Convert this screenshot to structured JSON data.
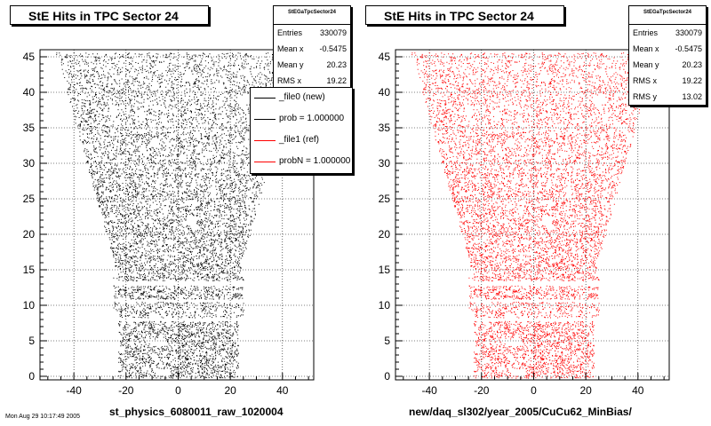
{
  "footer_text": "Mon Aug 29 10:17:49 2005",
  "chart_data": [
    {
      "type": "scatter",
      "title": "StE Hits in TPC Sector 24",
      "xlabel": "st_physics_6080011_raw_1020004",
      "ylabel": "",
      "xlim": [
        -53,
        52
      ],
      "ylim": [
        -0.5,
        46
      ],
      "xticks": [
        "-40",
        "-20",
        "0",
        "20",
        "40"
      ],
      "yticks": [
        "0",
        "5",
        "10",
        "15",
        "20",
        "25",
        "30",
        "35",
        "40",
        "45"
      ],
      "color": "#000000",
      "grid": true,
      "stats": {
        "name": "StEGaTpcSector24",
        "rows": [
          {
            "label": "Entries",
            "value": "330079"
          },
          {
            "label": "Mean x",
            "value": "-0.5475"
          },
          {
            "label": "Mean y",
            "value": "20.23"
          },
          {
            "label": "RMS x",
            "value": "19.22"
          }
        ]
      },
      "legend": [
        {
          "label": "_file0 (new)",
          "color": "#000000"
        },
        {
          "label": "prob = 1.000000",
          "color": "#000000"
        },
        {
          "label": "_file1 (ref)",
          "color": "#ff0000"
        },
        {
          "label": "probN = 1.000000",
          "color": "#ff0000"
        }
      ]
    },
    {
      "type": "scatter",
      "title": "StE Hits in TPC Sector 24",
      "xlabel": "new/daq_sl302/year_2005/CuCu62_MinBias/",
      "ylabel": "",
      "xlim": [
        -53,
        52
      ],
      "ylim": [
        -0.5,
        46
      ],
      "xticks": [
        "-40",
        "-20",
        "0",
        "20",
        "40"
      ],
      "yticks": [
        "0",
        "5",
        "10",
        "15",
        "20",
        "25",
        "30",
        "35",
        "40",
        "45"
      ],
      "color": "#ff0000",
      "grid": true,
      "stats": {
        "name": "StEGaTpcSector24",
        "rows": [
          {
            "label": "Entries",
            "value": "330079"
          },
          {
            "label": "Mean x",
            "value": "-0.5475"
          },
          {
            "label": "Mean y",
            "value": "20.23"
          },
          {
            "label": "RMS x",
            "value": "19.22"
          },
          {
            "label": "RMS y",
            "value": "13.02"
          }
        ]
      }
    }
  ]
}
